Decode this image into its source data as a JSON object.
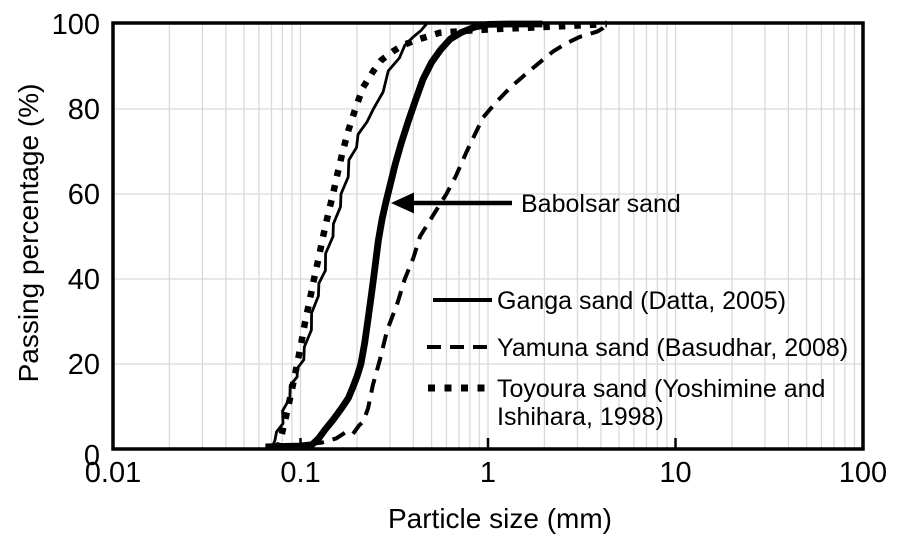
{
  "colors": {
    "line": "#000000",
    "grid": "#d9d9d9",
    "background": "#ffffff"
  },
  "chart_data": {
    "type": "line",
    "title": "",
    "xlabel": "Particle size (mm)",
    "ylabel": "Passing percentage (%)",
    "x_scale": "log",
    "xlim": [
      0.01,
      100
    ],
    "ylim": [
      0,
      100
    ],
    "x_ticks": [
      0.01,
      0.1,
      1,
      10,
      100
    ],
    "x_tick_labels": [
      "0.01",
      "0.1",
      "1",
      "10",
      "100"
    ],
    "y_ticks": [
      0,
      20,
      40,
      60,
      80,
      100
    ],
    "grid": "light gray horizontal lines every 20% and vertical log minor+major lines",
    "legend": {
      "position": "inside-right-middle",
      "entries": [
        {
          "series": "ganga",
          "label": "Ganga sand (Datta, 2005)"
        },
        {
          "series": "yamuna",
          "label": "Yamuna sand (Basudhar, 2008)"
        },
        {
          "series": "toyoura",
          "label_line1": "Toyoura sand (Yoshimine and",
          "label_line2": "Ishihara, 1998)"
        }
      ]
    },
    "annotation": {
      "text": "Babolsar sand",
      "arrow": "horizontal arrow pointing left at the thick solid curve",
      "points_to": {
        "particle_size_mm": 0.3,
        "passing_pct": 58
      }
    },
    "series": [
      {
        "id": "babolsar",
        "name": "Babolsar sand",
        "line_style": "thick-solid",
        "points": [
          [
            0.065,
            0.5
          ],
          [
            0.1,
            0.7
          ],
          [
            0.115,
            1
          ],
          [
            0.125,
            2.5
          ],
          [
            0.135,
            4.5
          ],
          [
            0.15,
            7
          ],
          [
            0.165,
            9.5
          ],
          [
            0.18,
            12
          ],
          [
            0.19,
            14.5
          ],
          [
            0.2,
            17
          ],
          [
            0.21,
            20
          ],
          [
            0.22,
            25
          ],
          [
            0.23,
            31
          ],
          [
            0.24,
            37
          ],
          [
            0.25,
            43
          ],
          [
            0.26,
            49
          ],
          [
            0.272,
            54
          ],
          [
            0.285,
            58
          ],
          [
            0.3,
            62
          ],
          [
            0.32,
            67
          ],
          [
            0.345,
            72
          ],
          [
            0.375,
            77
          ],
          [
            0.41,
            82
          ],
          [
            0.45,
            87
          ],
          [
            0.5,
            91
          ],
          [
            0.56,
            94
          ],
          [
            0.63,
            96.5
          ],
          [
            0.72,
            98
          ],
          [
            0.85,
            99.3
          ],
          [
            1.0,
            99.9
          ],
          [
            1.3,
            100
          ],
          [
            1.95,
            100
          ]
        ]
      },
      {
        "id": "ganga",
        "name": "Ganga sand (Datta, 2005)",
        "line_style": "thin-solid",
        "points": [
          [
            0.07,
            0
          ],
          [
            0.073,
            2
          ],
          [
            0.076,
            4
          ],
          [
            0.079,
            6
          ],
          [
            0.082,
            9
          ],
          [
            0.086,
            12
          ],
          [
            0.09,
            15
          ],
          [
            0.094,
            17
          ],
          [
            0.098,
            19
          ],
          [
            0.102,
            21
          ],
          [
            0.107,
            24
          ],
          [
            0.112,
            28
          ],
          [
            0.117,
            32
          ],
          [
            0.122,
            36
          ],
          [
            0.128,
            39
          ],
          [
            0.133,
            42
          ],
          [
            0.139,
            46
          ],
          [
            0.146,
            50
          ],
          [
            0.153,
            53
          ],
          [
            0.16,
            57
          ],
          [
            0.168,
            60
          ],
          [
            0.176,
            64
          ],
          [
            0.185,
            68
          ],
          [
            0.195,
            71
          ],
          [
            0.207,
            74
          ],
          [
            0.222,
            77
          ],
          [
            0.25,
            80
          ],
          [
            0.27,
            84
          ],
          [
            0.3,
            89
          ],
          [
            0.33,
            92
          ],
          [
            0.36,
            95
          ],
          [
            0.4,
            97
          ],
          [
            0.44,
            98.5
          ],
          [
            0.47,
            100
          ]
        ]
      },
      {
        "id": "yamuna",
        "name": "Yamuna sand (Basudhar, 2008)",
        "line_style": "dashed",
        "points": [
          [
            0.085,
            0.5
          ],
          [
            0.1,
            1
          ],
          [
            0.13,
            1.5
          ],
          [
            0.155,
            2.5
          ],
          [
            0.175,
            4
          ],
          [
            0.19,
            3.5
          ],
          [
            0.205,
            5.5
          ],
          [
            0.216,
            6.5
          ],
          [
            0.229,
            9.5
          ],
          [
            0.243,
            15
          ],
          [
            0.265,
            21
          ],
          [
            0.29,
            28
          ],
          [
            0.327,
            34
          ],
          [
            0.36,
            40
          ],
          [
            0.4,
            45
          ],
          [
            0.434,
            50
          ],
          [
            0.51,
            55
          ],
          [
            0.6,
            60
          ],
          [
            0.67,
            64
          ],
          [
            0.77,
            70
          ],
          [
            0.94,
            78
          ],
          [
            1.1,
            81.5
          ],
          [
            1.31,
            85
          ],
          [
            1.57,
            88
          ],
          [
            1.89,
            91
          ],
          [
            2.22,
            93.5
          ],
          [
            2.63,
            95.5
          ],
          [
            3.09,
            97
          ],
          [
            3.81,
            98.2
          ],
          [
            4.1,
            99
          ],
          [
            4.35,
            100
          ]
        ]
      },
      {
        "id": "toyoura",
        "name": "Toyoura sand (Yoshimine and Ishihara, 1998)",
        "line_style": "thick-dotted",
        "points": [
          [
            0.076,
            0
          ],
          [
            0.08,
            4
          ],
          [
            0.084,
            8
          ],
          [
            0.088,
            12
          ],
          [
            0.092,
            16
          ],
          [
            0.096,
            20
          ],
          [
            0.101,
            25
          ],
          [
            0.106,
            30
          ],
          [
            0.112,
            35
          ],
          [
            0.118,
            40
          ],
          [
            0.125,
            45
          ],
          [
            0.132,
            50
          ],
          [
            0.14,
            55
          ],
          [
            0.149,
            60
          ],
          [
            0.158,
            65
          ],
          [
            0.168,
            70
          ],
          [
            0.18,
            75
          ],
          [
            0.196,
            80
          ],
          [
            0.215,
            85
          ],
          [
            0.245,
            89
          ],
          [
            0.27,
            91.5
          ],
          [
            0.31,
            93.5
          ],
          [
            0.35,
            95
          ],
          [
            0.42,
            96.3
          ],
          [
            0.55,
            97.9
          ],
          [
            0.75,
            98.4
          ],
          [
            1.1,
            98.8
          ],
          [
            1.6,
            99.1
          ],
          [
            2.3,
            99.4
          ],
          [
            3.2,
            99.7
          ],
          [
            4.3,
            100
          ]
        ]
      }
    ]
  }
}
